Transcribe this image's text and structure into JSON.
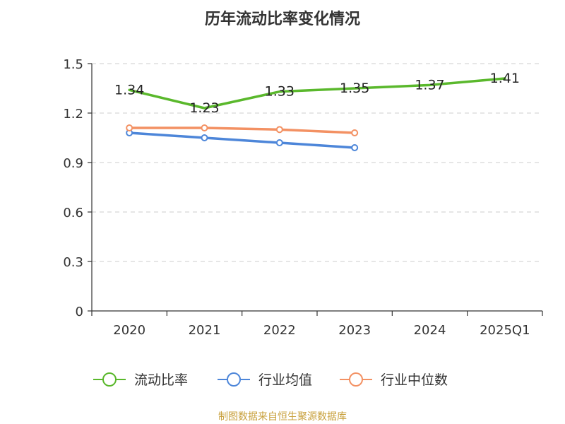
{
  "chart_data": {
    "type": "line",
    "title": "历年流动比率变化情况",
    "categories": [
      "2020",
      "2021",
      "2022",
      "2023",
      "2024",
      "2025Q1"
    ],
    "y_ticks": [
      "0",
      "0.3",
      "0.6",
      "0.9",
      "1.2",
      "1.5"
    ],
    "ylim": [
      0,
      1.5
    ],
    "grid": true,
    "legend_position": "bottom",
    "series": [
      {
        "name": "流动比率",
        "color": "#5ab82c",
        "values": [
          1.34,
          1.23,
          1.33,
          1.35,
          1.37,
          1.41
        ],
        "data_labels": [
          "1.34",
          "1.23",
          "1.33",
          "1.35",
          "1.37",
          "1.41"
        ],
        "show_markers": false
      },
      {
        "name": "行业均值",
        "color": "#4d86d9",
        "values": [
          1.08,
          1.05,
          1.02,
          0.99,
          null,
          null
        ],
        "show_markers": true
      },
      {
        "name": "行业中位数",
        "color": "#f39163",
        "values": [
          1.11,
          1.11,
          1.1,
          1.08,
          null,
          null
        ],
        "show_markers": true
      }
    ]
  },
  "footer": {
    "source": "制图数据来自恒生聚源数据库"
  }
}
